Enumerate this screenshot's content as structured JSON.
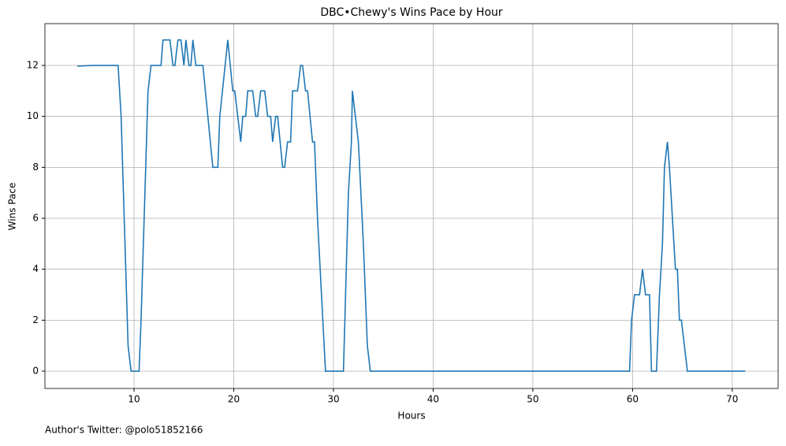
{
  "chart_data": {
    "type": "line",
    "title": "DBC•Chewy's Wins Pace by Hour",
    "xlabel": "Hours",
    "ylabel": "Wins Pace",
    "footnote": "Author's Twitter: @polo51852166",
    "xlim": [
      1.06,
      74.6
    ],
    "ylim": [
      -0.68,
      13.64
    ],
    "xticks": [
      10,
      20,
      30,
      40,
      50,
      60,
      70
    ],
    "yticks": [
      0,
      2,
      4,
      6,
      8,
      10,
      12
    ],
    "grid": true,
    "x": [
      4.3,
      5.7,
      8.4,
      8.7,
      9.4,
      9.7,
      10.5,
      10.7,
      11.4,
      11.7,
      12.7,
      12.9,
      13.6,
      13.9,
      14.1,
      14.4,
      14.7,
      15.0,
      15.2,
      15.5,
      15.7,
      15.9,
      16.2,
      16.9,
      17.9,
      18.4,
      18.6,
      19.4,
      19.9,
      20.1,
      20.7,
      20.9,
      21.2,
      21.4,
      21.9,
      22.2,
      22.4,
      22.7,
      23.1,
      23.4,
      23.7,
      23.9,
      24.2,
      24.4,
      24.9,
      25.1,
      25.4,
      25.7,
      25.9,
      26.4,
      26.7,
      26.9,
      27.2,
      27.4,
      27.9,
      28.1,
      28.4,
      29.2,
      31.0,
      31.5,
      31.8,
      31.9,
      32.5,
      33.0,
      33.4,
      33.7,
      59.7,
      59.9,
      60.2,
      60.7,
      61.0,
      61.3,
      61.7,
      61.9,
      62.4,
      62.7,
      63.0,
      63.2,
      63.5,
      63.7,
      64.3,
      64.5,
      64.7,
      64.9,
      65.5,
      71.3
    ],
    "series": [
      {
        "name": "Wins Pace",
        "color": "#1f77b4",
        "values": [
          11.97,
          12,
          12,
          10,
          1,
          0,
          0,
          2,
          11,
          12,
          12,
          13,
          13,
          12,
          12,
          13,
          13,
          12,
          13,
          12,
          12,
          13,
          12,
          12,
          8,
          8,
          10,
          13,
          11,
          11,
          9,
          10,
          10,
          11,
          11,
          10,
          10,
          11,
          11,
          10,
          10,
          9,
          10,
          10,
          8,
          8,
          9,
          9,
          11,
          11,
          12,
          12,
          11,
          11,
          9,
          9,
          6,
          0,
          0,
          7,
          9,
          11,
          9,
          5,
          1,
          0,
          0,
          2,
          3,
          3,
          4,
          3,
          3,
          0,
          0,
          3,
          5,
          8,
          9,
          8,
          4,
          4,
          2,
          2,
          0,
          0
        ]
      }
    ]
  }
}
